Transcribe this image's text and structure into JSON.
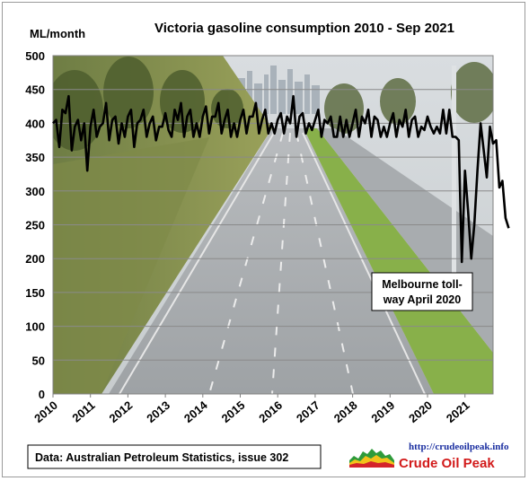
{
  "chart_data": {
    "type": "line",
    "title": "Victoria gasoline consumption  2010 - Sep 2021",
    "ylabel": "ML/month",
    "xlabel": "",
    "ylim": [
      0,
      500
    ],
    "yticks": [
      0,
      50,
      100,
      150,
      200,
      250,
      300,
      350,
      400,
      450,
      500
    ],
    "xlim": [
      2010,
      2021.75
    ],
    "xticks": [
      "2010",
      "2011",
      "2012",
      "2013",
      "2014",
      "2015",
      "2016",
      "2017",
      "2018",
      "2019",
      "2020",
      "2021"
    ],
    "grid": "horizontal",
    "line_color": "#000000",
    "background": "photo of empty Melbourne tollway",
    "series": [
      {
        "name": "",
        "values": [
          400,
          405,
          365,
          420,
          415,
          440,
          360,
          395,
          405,
          375,
          400,
          330,
          395,
          420,
          380,
          395,
          400,
          430,
          375,
          405,
          410,
          370,
          400,
          380,
          410,
          420,
          365,
          400,
          405,
          420,
          380,
          400,
          410,
          375,
          395,
          395,
          415,
          390,
          380,
          420,
          405,
          430,
          380,
          410,
          420,
          380,
          400,
          380,
          410,
          425,
          385,
          410,
          410,
          430,
          385,
          405,
          420,
          380,
          400,
          380,
          405,
          420,
          385,
          410,
          410,
          430,
          385,
          405,
          420,
          385,
          400,
          385,
          405,
          415,
          385,
          410,
          400,
          440,
          380,
          410,
          415,
          385,
          400,
          390,
          405,
          420,
          380,
          405,
          400,
          410,
          380,
          380,
          410,
          380,
          405,
          380,
          400,
          420,
          380,
          410,
          400,
          420,
          380,
          410,
          405,
          380,
          395,
          380,
          400,
          415,
          380,
          405,
          395,
          420,
          380,
          405,
          410,
          380,
          395,
          390,
          410,
          395,
          385,
          395,
          385,
          420,
          385,
          420,
          380,
          380,
          375,
          195,
          330,
          270,
          200,
          250,
          330,
          400,
          360,
          320,
          395,
          370,
          375,
          305,
          315,
          260,
          245
        ]
      }
    ],
    "annotations": [
      {
        "text_lines": [
          "Melbourne toll-",
          "way April 2020"
        ]
      }
    ]
  },
  "footer": {
    "source": "Data: Australian Petroleum Statistics, issue 302",
    "url": "http://crudeoilpeak.info",
    "brand": "Crude Oil Peak"
  }
}
